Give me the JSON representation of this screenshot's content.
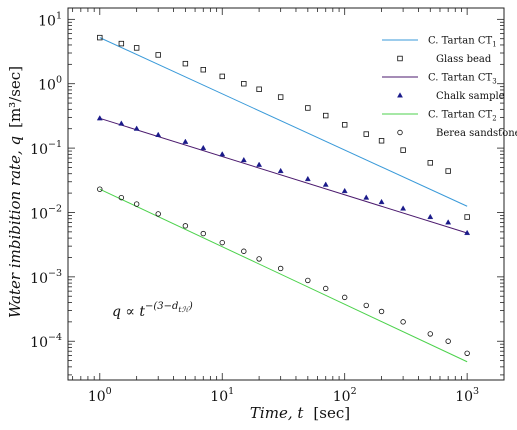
{
  "chart_data": {
    "type": "scatter",
    "xscale": "log",
    "yscale": "log",
    "xlim": [
      0.55,
      2000
    ],
    "ylim": [
      2.5e-05,
      15
    ],
    "xlabel": "Time, t",
    "xlabel_unit": "[sec]",
    "ylabel": "Water imbibition rate, q",
    "ylabel_unit": "[m³/sec]",
    "x_ticks": [
      {
        "base": "10",
        "exp": "0",
        "value": 1
      },
      {
        "base": "10",
        "exp": "1",
        "value": 10
      },
      {
        "base": "10",
        "exp": "2",
        "value": 100
      },
      {
        "base": "10",
        "exp": "3",
        "value": 1000
      }
    ],
    "y_ticks": [
      {
        "base": "10",
        "exp": "1",
        "value": 10
      },
      {
        "base": "10",
        "exp": "0",
        "value": 1
      },
      {
        "base": "10",
        "exp": "−1",
        "value": 0.1
      },
      {
        "base": "10",
        "exp": "−2",
        "value": 0.01
      },
      {
        "base": "10",
        "exp": "−3",
        "value": 0.001
      },
      {
        "base": "10",
        "exp": "−4",
        "value": 0.0001
      }
    ],
    "grid": false,
    "legend_position": "top-right",
    "annotation": "q ∝ t^−(3−dₜℋ)",
    "annotation_parts": {
      "lhs": "q ∝ t",
      "sup": "−(3−d",
      "sub": "tℋ",
      "close": ")"
    },
    "series": [
      {
        "name": "C. Tartan CT1",
        "kind": "line",
        "color": "#3a9ad9",
        "x": [
          1,
          1000
        ],
        "y": [
          5.2,
          0.0125
        ]
      },
      {
        "name": "Glass bead",
        "kind": "scatter",
        "marker": "square",
        "color": "#111111",
        "x": [
          1,
          1.5,
          2,
          3,
          5,
          7,
          10,
          15,
          20,
          30,
          50,
          70,
          100,
          150,
          200,
          300,
          500,
          700,
          1000
        ],
        "y": [
          5.2,
          4.2,
          3.6,
          2.8,
          2.05,
          1.65,
          1.3,
          1.0,
          0.82,
          0.62,
          0.42,
          0.32,
          0.23,
          0.165,
          0.13,
          0.093,
          0.059,
          0.044,
          0.0085
        ]
      },
      {
        "name": "C. Tartan CT3",
        "kind": "line",
        "color": "#4b1a6e",
        "x": [
          1,
          1000
        ],
        "y": [
          0.29,
          0.0048
        ]
      },
      {
        "name": "Chalk sample",
        "kind": "scatter",
        "marker": "triangle",
        "color": "#1a1a8a",
        "x": [
          1,
          1.5,
          2,
          3,
          5,
          7,
          10,
          15,
          20,
          30,
          50,
          70,
          100,
          150,
          200,
          300,
          500,
          700,
          1000
        ],
        "y": [
          0.29,
          0.24,
          0.2,
          0.16,
          0.125,
          0.1,
          0.08,
          0.065,
          0.055,
          0.044,
          0.033,
          0.027,
          0.0215,
          0.017,
          0.0145,
          0.0115,
          0.0085,
          0.007,
          0.0048
        ]
      },
      {
        "name": "C. Tartan CT2",
        "kind": "line",
        "color": "#4cd24c",
        "x": [
          1,
          1000
        ],
        "y": [
          0.023,
          4.8e-05
        ]
      },
      {
        "name": "Berea sandstone",
        "kind": "scatter",
        "marker": "circle",
        "color": "#111111",
        "x": [
          1,
          1.5,
          2,
          3,
          5,
          7,
          10,
          15,
          20,
          30,
          50,
          70,
          100,
          150,
          200,
          300,
          500,
          700,
          1000
        ],
        "y": [
          0.023,
          0.017,
          0.0135,
          0.0095,
          0.0062,
          0.0047,
          0.0034,
          0.0025,
          0.0019,
          0.00135,
          0.00088,
          0.00066,
          0.00048,
          0.00036,
          0.00029,
          0.0002,
          0.00013,
          0.0001,
          6.5e-05
        ]
      }
    ],
    "legend": [
      {
        "label": "C. Tartan CT",
        "sub": "1",
        "kind": "line",
        "color": "#3a9ad9"
      },
      {
        "label": "Glass bead",
        "kind": "scatter",
        "marker": "square",
        "color": "#111111"
      },
      {
        "label": "C. Tartan CT",
        "sub": "3",
        "kind": "line",
        "color": "#4b1a6e"
      },
      {
        "label": "Chalk sample",
        "kind": "scatter",
        "marker": "triangle",
        "color": "#1a1a8a"
      },
      {
        "label": "C. Tartan CT",
        "sub": "2",
        "kind": "line",
        "color": "#4cd24c"
      },
      {
        "label": "Berea sandstone",
        "kind": "scatter",
        "marker": "circle",
        "color": "#111111"
      }
    ]
  }
}
